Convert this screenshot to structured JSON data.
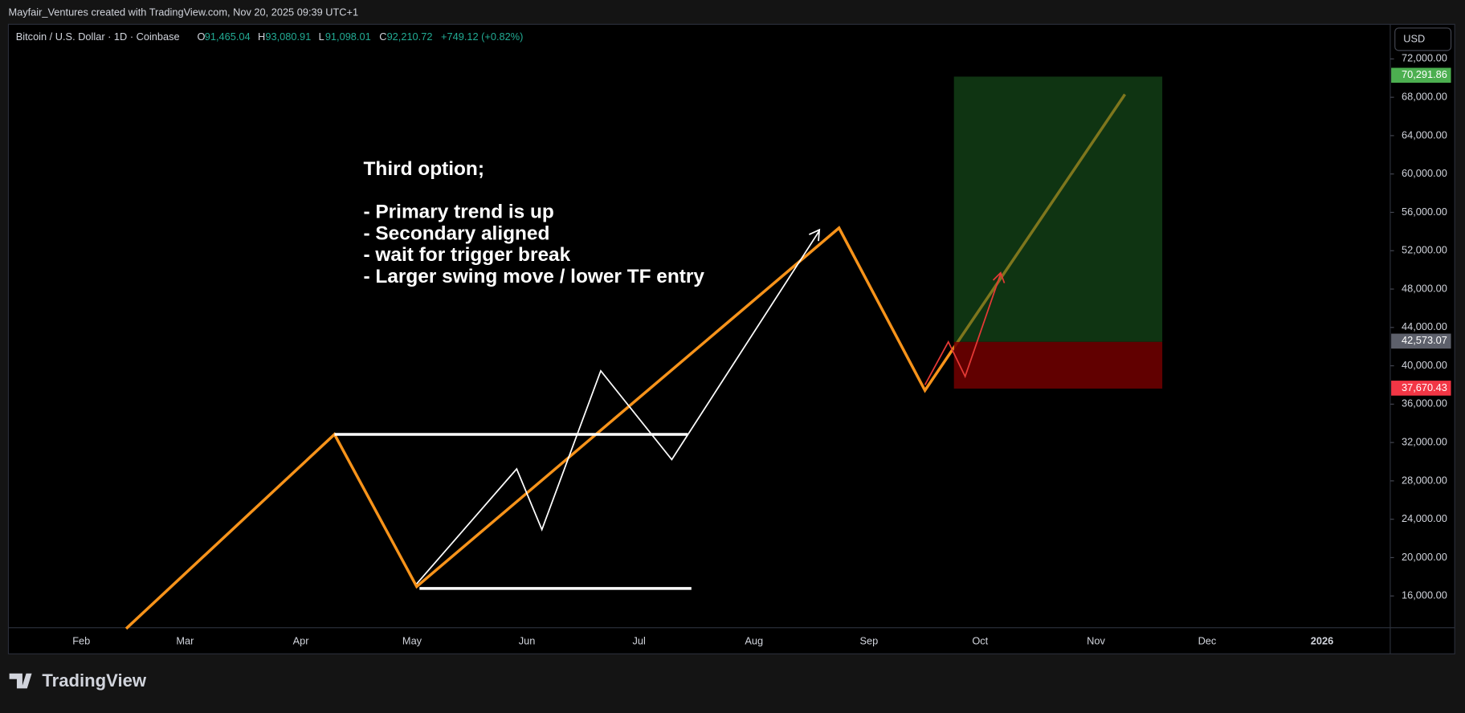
{
  "header": {
    "credit": "Mayfair_Ventures created with TradingView.com, Nov 20, 2025 09:39 UTC+1"
  },
  "legend": {
    "symbol": "Bitcoin / U.S. Dollar · 1D · Coinbase",
    "open_label": "O",
    "open": "91,465.04",
    "high_label": "H",
    "high": "93,080.91",
    "low_label": "L",
    "low": "91,098.01",
    "close_label": "C",
    "close": "92,210.72",
    "change": "+749.12 (+0.82%)"
  },
  "currency": "USD",
  "brand": "TradingView",
  "annotation": {
    "title": "Third option;",
    "lines": [
      "- Primary trend is up",
      "- Secondary aligned",
      "- wait for trigger break",
      "- Larger swing move / lower TF entry"
    ]
  },
  "chart_data": {
    "type": "line",
    "ylim": [
      12690,
      75510
    ],
    "yticks": [
      {
        "value": 16000,
        "label": "16,000.00"
      },
      {
        "value": 20000,
        "label": "20,000.00"
      },
      {
        "value": 24000,
        "label": "24,000.00"
      },
      {
        "value": 28000,
        "label": "28,000.00"
      },
      {
        "value": 32000,
        "label": "32,000.00"
      },
      {
        "value": 36000,
        "label": "36,000.00"
      },
      {
        "value": 40000,
        "label": "40,000.00"
      },
      {
        "value": 44000,
        "label": "44,000.00"
      },
      {
        "value": 48000,
        "label": "48,000.00"
      },
      {
        "value": 52000,
        "label": "52,000.00"
      },
      {
        "value": 56000,
        "label": "56,000.00"
      },
      {
        "value": 60000,
        "label": "60,000.00"
      },
      {
        "value": 64000,
        "label": "64,000.00"
      },
      {
        "value": 68000,
        "label": "68,000.00"
      },
      {
        "value": 72000,
        "label": "72,000.00"
      }
    ],
    "categories": [
      "Feb",
      "Mar",
      "Apr",
      "May",
      "Jun",
      "Jul",
      "Aug",
      "Sep",
      "Oct",
      "Nov",
      "Dec",
      "2026"
    ],
    "price_labels": [
      {
        "value": 70291.86,
        "label": "70,291.86",
        "color": "#4caf50"
      },
      {
        "value": 42573.07,
        "label": "42,573.07",
        "color": "#5d606b"
      },
      {
        "value": 37670.43,
        "label": "37,670.43",
        "color": "#f23645"
      }
    ]
  }
}
